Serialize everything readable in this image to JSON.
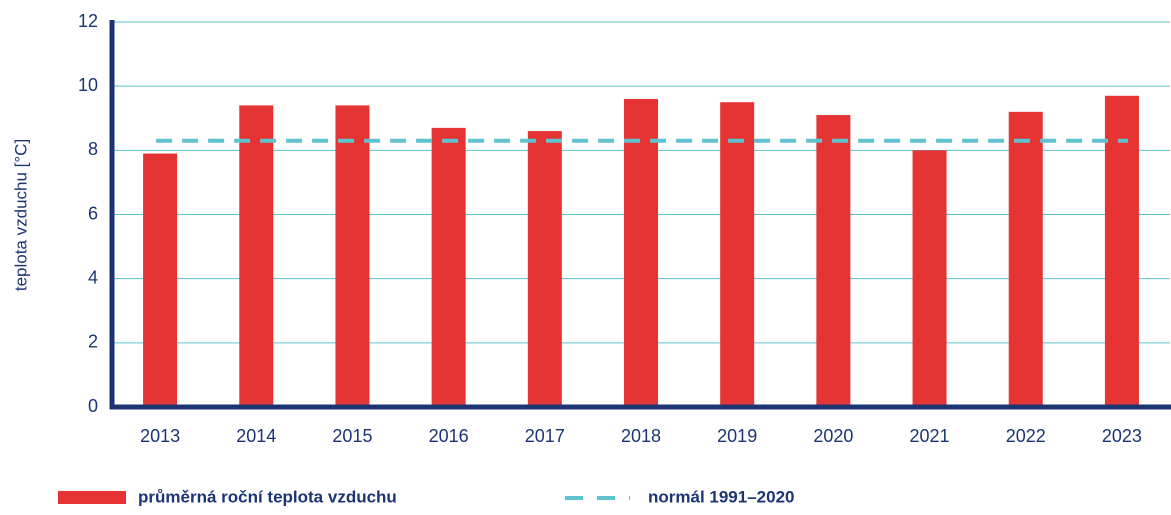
{
  "chart_data": {
    "type": "bar",
    "y_label": "teplota vzduchu [°C]",
    "categories": [
      "2013",
      "2014",
      "2015",
      "2016",
      "2017",
      "2018",
      "2019",
      "2020",
      "2021",
      "2022",
      "2023"
    ],
    "series": [
      {
        "name": "průměrná roční teplota vzduchu",
        "color": "#e63333",
        "values": [
          7.9,
          9.4,
          9.4,
          8.7,
          8.6,
          9.6,
          9.5,
          9.1,
          8.0,
          9.2,
          9.7
        ]
      }
    ],
    "reference_line": {
      "name": "normál 1991–2020",
      "color": "#5fc3cf",
      "value": 8.3
    },
    "ylim": [
      0,
      12
    ],
    "yticks": [
      0,
      2,
      4,
      6,
      8,
      10,
      12
    ],
    "grid": true
  }
}
